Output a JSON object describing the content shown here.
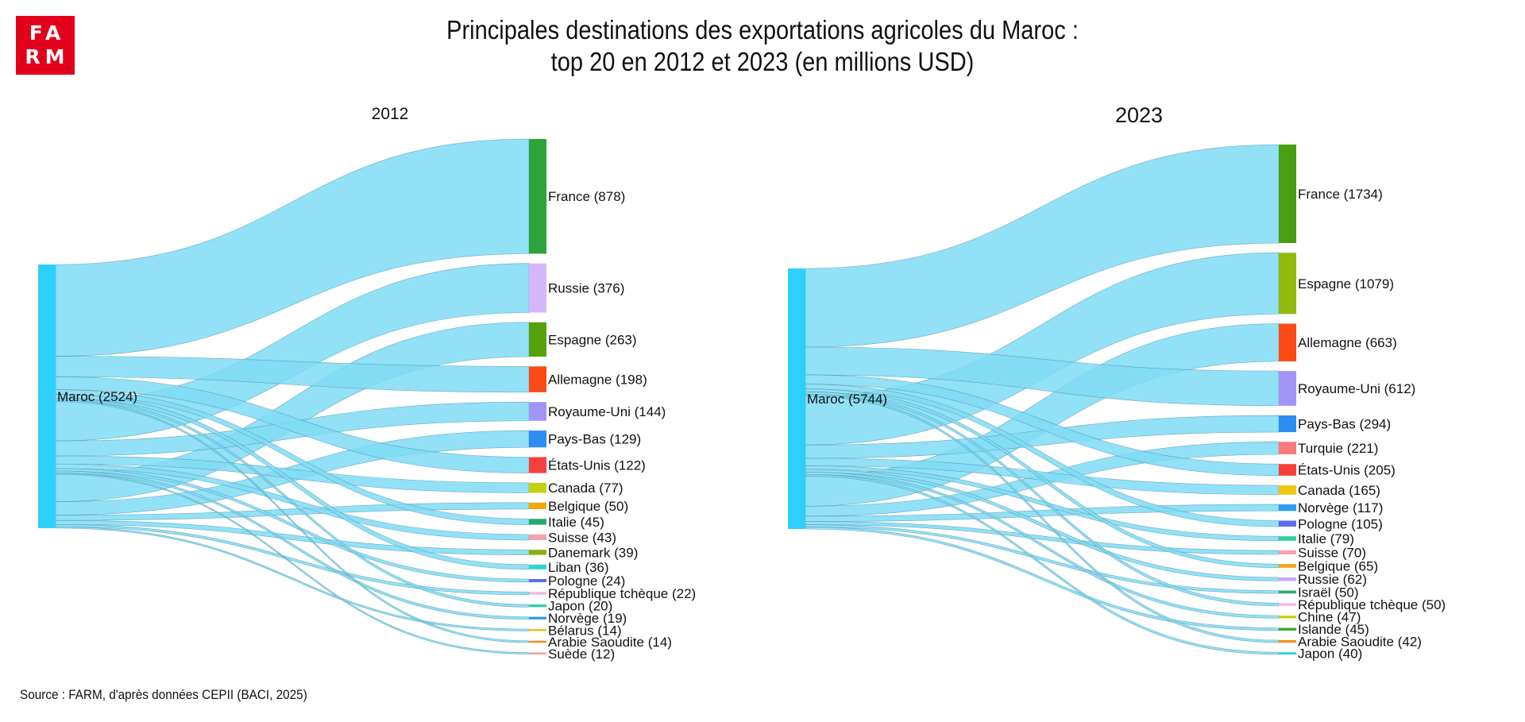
{
  "logo": {
    "line1": "FA",
    "line2": "RM"
  },
  "title": {
    "line1": "Principales destinations des exportations agricoles du Maroc :",
    "line2": "top 20 en 2012 et 2023 (en millions USD)"
  },
  "source": "Source : FARM, d'après données CEPII (BACI, 2025)",
  "chart_data": [
    {
      "type": "sankey",
      "title": "2012",
      "source_node": {
        "name": "Maroc",
        "value": 2524,
        "label": "Maroc (2524)",
        "color": "#2ecffb"
      },
      "link_color": "#7fdcf5",
      "targets": [
        {
          "name": "France",
          "value": 878,
          "label": "France (878)",
          "color": "#2ca33b"
        },
        {
          "name": "Russie",
          "value": 376,
          "label": "Russie (376)",
          "color": "#d5b8fb"
        },
        {
          "name": "Espagne",
          "value": 263,
          "label": "Espagne (263)",
          "color": "#56a20e"
        },
        {
          "name": "Allemagne",
          "value": 198,
          "label": "Allemagne (198)",
          "color": "#fb4a15"
        },
        {
          "name": "Royaume-Uni",
          "value": 144,
          "label": "Royaume-Uni (144)",
          "color": "#a294f7"
        },
        {
          "name": "Pays-Bas",
          "value": 129,
          "label": "Pays-Bas (129)",
          "color": "#2d8df0"
        },
        {
          "name": "États-Unis",
          "value": 122,
          "label": "États-Unis (122)",
          "color": "#f5413c"
        },
        {
          "name": "Canada",
          "value": 77,
          "label": "Canada (77)",
          "color": "#c3d10f"
        },
        {
          "name": "Belgique",
          "value": 50,
          "label": "Belgique (50)",
          "color": "#f5a50f"
        },
        {
          "name": "Italie",
          "value": 45,
          "label": "Italie (45)",
          "color": "#2aa96b"
        },
        {
          "name": "Suisse",
          "value": 43,
          "label": "Suisse (43)",
          "color": "#f5a0b0"
        },
        {
          "name": "Danemark",
          "value": 39,
          "label": "Danemark (39)",
          "color": "#8ab00f"
        },
        {
          "name": "Liban",
          "value": 36,
          "label": "Liban (36)",
          "color": "#2fd3d0"
        },
        {
          "name": "Pologne",
          "value": 24,
          "label": "Pologne (24)",
          "color": "#5b6cf0"
        },
        {
          "name": "République tchèque",
          "value": 22,
          "label": "République tchèque (22)",
          "color": "#f5b8e8"
        },
        {
          "name": "Japon",
          "value": 20,
          "label": "Japon (20)",
          "color": "#2fd0a0"
        },
        {
          "name": "Norvège",
          "value": 19,
          "label": "Norvège (19)",
          "color": "#2d8df0"
        },
        {
          "name": "Bélarus",
          "value": 14,
          "label": "Bélarus (14)",
          "color": "#e5c80f"
        },
        {
          "name": "Arabie Saoudite",
          "value": 14,
          "label": "Arabie Saoudite (14)",
          "color": "#f58a1a"
        },
        {
          "name": "Suède",
          "value": 12,
          "label": "Suède (12)",
          "color": "#f5a0a0"
        }
      ]
    },
    {
      "type": "sankey",
      "title": "2023",
      "source_node": {
        "name": "Maroc",
        "value": 5744,
        "label": "Maroc (5744)",
        "color": "#2ecffb"
      },
      "link_color": "#7fdcf5",
      "targets": [
        {
          "name": "France",
          "value": 1734,
          "label": "France (1734)",
          "color": "#4b9e12"
        },
        {
          "name": "Espagne",
          "value": 1079,
          "label": "Espagne (1079)",
          "color": "#93b90f"
        },
        {
          "name": "Allemagne",
          "value": 663,
          "label": "Allemagne (663)",
          "color": "#fb4a15"
        },
        {
          "name": "Royaume-Uni",
          "value": 612,
          "label": "Royaume-Uni (612)",
          "color": "#a294f7"
        },
        {
          "name": "Pays-Bas",
          "value": 294,
          "label": "Pays-Bas (294)",
          "color": "#2d8df0"
        },
        {
          "name": "Turquie",
          "value": 221,
          "label": "Turquie (221)",
          "color": "#fb7a7a"
        },
        {
          "name": "États-Unis",
          "value": 205,
          "label": "États-Unis (205)",
          "color": "#f5413c"
        },
        {
          "name": "Canada",
          "value": 165,
          "label": "Canada (165)",
          "color": "#f0c80f"
        },
        {
          "name": "Norvège",
          "value": 117,
          "label": "Norvège (117)",
          "color": "#2d9df0"
        },
        {
          "name": "Pologne",
          "value": 105,
          "label": "Pologne (105)",
          "color": "#5b6cf0"
        },
        {
          "name": "Italie",
          "value": 79,
          "label": "Italie (79)",
          "color": "#2fd0a0"
        },
        {
          "name": "Suisse",
          "value": 70,
          "label": "Suisse (70)",
          "color": "#f5a0b0"
        },
        {
          "name": "Belgique",
          "value": 65,
          "label": "Belgique (65)",
          "color": "#f5a50f"
        },
        {
          "name": "Russie",
          "value": 62,
          "label": "Russie (62)",
          "color": "#c8a8f7"
        },
        {
          "name": "Israël",
          "value": 50,
          "label": "Israël (50)",
          "color": "#2aa96b"
        },
        {
          "name": "République tchèque",
          "value": 50,
          "label": "République tchèque (50)",
          "color": "#f5b8e8"
        },
        {
          "name": "Chine",
          "value": 47,
          "label": "Chine (47)",
          "color": "#c3d10f"
        },
        {
          "name": "Islande",
          "value": 45,
          "label": "Islande (45)",
          "color": "#3aa020"
        },
        {
          "name": "Arabie Saoudite",
          "value": 42,
          "label": "Arabie Saoudite (42)",
          "color": "#f58a1a"
        },
        {
          "name": "Japon",
          "value": 40,
          "label": "Japon (40)",
          "color": "#2fd3d0"
        }
      ]
    }
  ]
}
